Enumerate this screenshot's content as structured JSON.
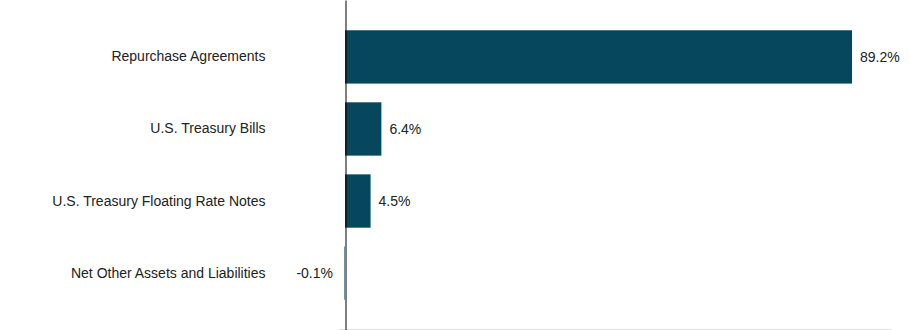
{
  "chart_data": {
    "type": "bar",
    "orientation": "horizontal",
    "categories": [
      "Repurchase Agreements",
      "U.S. Treasury Bills",
      "U.S. Treasury Floating Rate Notes",
      "Net Other Assets and Liabilities"
    ],
    "values": [
      89.2,
      6.4,
      4.5,
      -0.1
    ],
    "value_labels": [
      "89.2%",
      "6.4%",
      "4.5%",
      "-0.1%"
    ],
    "color": "#07475e",
    "xlim": [
      -1,
      96
    ],
    "xticks": [],
    "grid": false,
    "data_labels": true,
    "tick_labels": "y"
  }
}
